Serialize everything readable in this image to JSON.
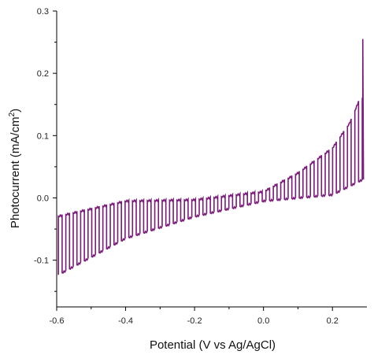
{
  "chart_data": {
    "type": "line",
    "title": "",
    "xlabel": "Potential (V vs Ag/AgCl)",
    "ylabel_main": "Photocurrent (mA/cm",
    "ylabel_sup": "2",
    "ylabel_close": ")",
    "xlim": [
      -0.6,
      0.3
    ],
    "ylim": [
      -0.175,
      0.3
    ],
    "x_ticks": [
      -0.6,
      -0.4,
      -0.2,
      0.0,
      0.2
    ],
    "x_tick_labels": [
      "-0.6",
      "-0.4",
      "-0.2",
      "0.0",
      "0.2"
    ],
    "y_ticks": [
      -0.1,
      0.0,
      0.1,
      0.2,
      0.3
    ],
    "y_tick_labels": [
      "-0.1",
      "0.0",
      "0.1",
      "0.2",
      "0.3"
    ],
    "grid": false,
    "legend": "none",
    "line_color": "#7a1a7a",
    "chopped_light": {
      "x_start": -0.595,
      "x_end": 0.288,
      "period": 0.0215,
      "dark_current_points": {
        "x": [
          -0.6,
          -0.4,
          -0.2,
          0.0,
          0.2,
          0.29
        ],
        "y": [
          -0.125,
          -0.065,
          -0.03,
          -0.005,
          0.005,
          0.03
        ]
      },
      "light_current_points": {
        "x": [
          -0.6,
          -0.4,
          -0.2,
          0.0,
          0.1,
          0.2,
          0.25,
          0.28
        ],
        "y": [
          -0.03,
          -0.005,
          -0.003,
          0.01,
          0.04,
          0.08,
          0.12,
          0.16
        ]
      },
      "final_spike": {
        "x": 0.288,
        "y": 0.255
      }
    }
  }
}
